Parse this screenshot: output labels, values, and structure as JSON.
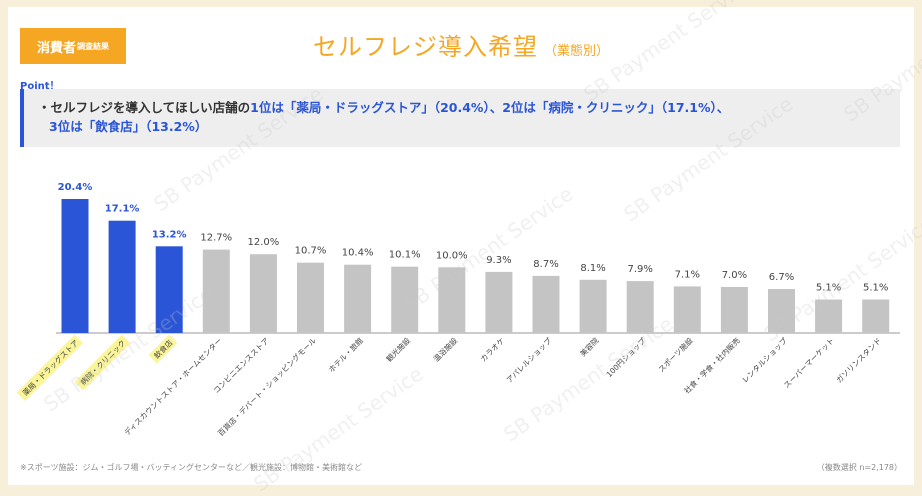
{
  "badge": {
    "main": "消費者",
    "small": "調査結果"
  },
  "title": "セルフレジ導入希望",
  "subtitle": "（業態別）",
  "point": {
    "label": "Point！",
    "line1_prefix": "・セルフレジを導入してほしい店舗の",
    "line1_highlight": "1位は「薬局・ドラッグストア」（20.4%）、2位は「病院・クリニック」（17.1%）、",
    "line2_highlight": "3位は「飲食店」（13.2%）"
  },
  "footnote": "※スポーツ施設：ジム・ゴルフ場・バッティングセンターなど／観光施設：博物館・美術館など",
  "sample_note": "（複数選択 n=2,178）",
  "watermark_text": "SB Payment Service",
  "colors": {
    "top3_bar": "#2a55d6",
    "other_bar": "#c4c4c4",
    "highlight_label_bg": "#fbf59a",
    "accent": "#f5a623"
  },
  "chart_data": {
    "type": "bar",
    "categories": [
      "薬局・ドラッグストア",
      "病院・クリニック",
      "飲食店",
      "ディスカウントストア・ホームセンター",
      "コンビニエンスストア",
      "百貨店・デパート・ショッピングモール",
      "ホテル・旅館",
      "観光施設",
      "温浴施設",
      "カラオケ",
      "アパレルショップ",
      "美容院",
      "100円ショップ",
      "スポーツ施設",
      "社食・学食・社内販売",
      "レンタルショップ",
      "スーパーマーケット",
      "ガソリンスタンド"
    ],
    "values": [
      20.4,
      17.1,
      13.2,
      12.7,
      12.0,
      10.7,
      10.4,
      10.1,
      10.0,
      9.3,
      8.7,
      8.1,
      7.9,
      7.1,
      7.0,
      6.7,
      5.1,
      5.1
    ],
    "value_labels": [
      "20.4%",
      "17.1%",
      "13.2%",
      "12.7%",
      "12.0%",
      "10.7%",
      "10.4%",
      "10.1%",
      "10.0%",
      "9.3%",
      "8.7%",
      "8.1%",
      "7.9%",
      "7.1%",
      "7.0%",
      "6.7%",
      "5.1%",
      "5.1%"
    ],
    "highlighted_count": 3,
    "title": "セルフレジ導入希望",
    "xlabel": "",
    "ylabel": "",
    "ylim": [
      0,
      22
    ],
    "grid": false
  }
}
